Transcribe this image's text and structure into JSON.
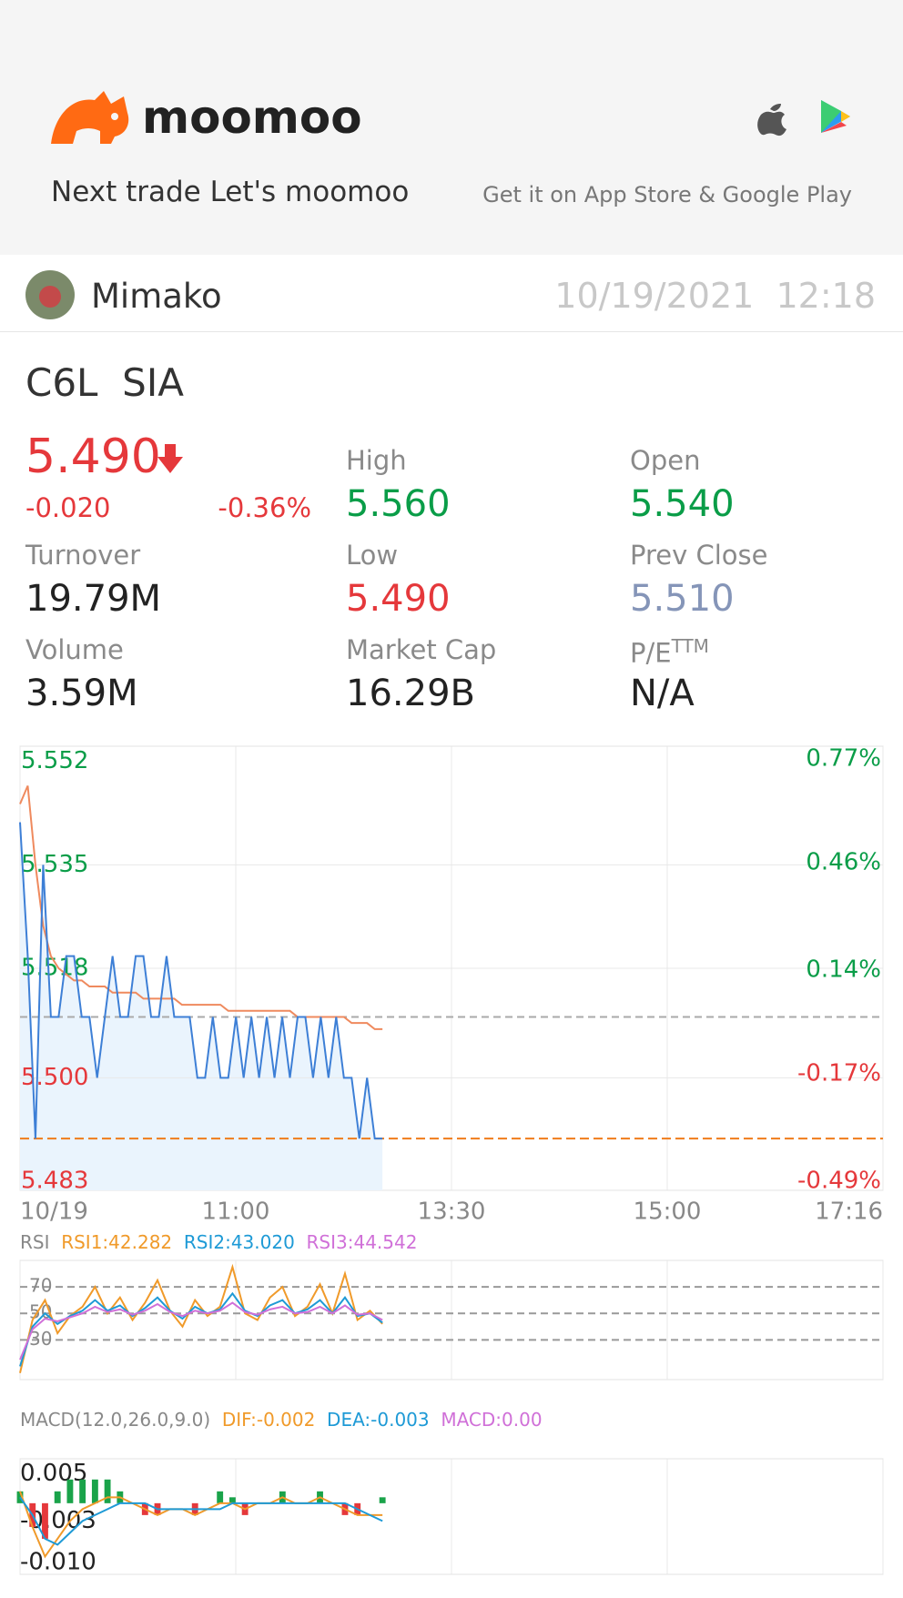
{
  "header": {
    "brand": "moomoo",
    "tagline": "Next trade Let's moomoo",
    "store_text": "Get it on App Store & Google Play"
  },
  "post": {
    "user": "Mimako",
    "date": "10/19/2021",
    "time": "12:18"
  },
  "stock": {
    "code": "C6L",
    "name": "SIA",
    "price": "5.490",
    "change": "-0.020",
    "change_pct": "-0.36%",
    "stats": [
      {
        "label": "High",
        "value": "5.560"
      },
      {
        "label": "Open",
        "value": "5.540"
      },
      {
        "label": "Turnover",
        "value": "19.79M"
      },
      {
        "label": "Low",
        "value": "5.490"
      },
      {
        "label": "Prev Close",
        "value": "5.510"
      },
      {
        "label": "Volume",
        "value": "3.59M"
      },
      {
        "label": "Market Cap",
        "value": "16.29B"
      },
      {
        "label": "P/E",
        "label_sup": "TTM",
        "value": "N/A"
      }
    ]
  },
  "chart_data": [
    {
      "type": "line",
      "x_labels": [
        "10/19",
        "11:00",
        "13:30",
        "15:00",
        "17:16"
      ],
      "series": [
        {
          "color": "#3d7fd6",
          "values": [
            5.542,
            5.52,
            5.49,
            5.535,
            5.51,
            5.51,
            5.52,
            5.52,
            5.51,
            5.51,
            5.5,
            5.51,
            5.52,
            5.51,
            5.51,
            5.52,
            5.52,
            5.51,
            5.51,
            5.52,
            5.51,
            5.51,
            5.51,
            5.5,
            5.5,
            5.51,
            5.5,
            5.5,
            5.51,
            5.5,
            5.51,
            5.5,
            5.51,
            5.5,
            5.51,
            5.5,
            5.51,
            5.51,
            5.5,
            5.51,
            5.5,
            5.51,
            5.5,
            5.5,
            5.49,
            5.5,
            5.49,
            5.49
          ]
        },
        {
          "color": "#ef8a5e",
          "values": [
            5.545,
            5.548,
            5.535,
            5.525,
            5.52,
            5.518,
            5.517,
            5.516,
            5.516,
            5.515,
            5.515,
            5.515,
            5.514,
            5.514,
            5.514,
            5.514,
            5.513,
            5.513,
            5.513,
            5.513,
            5.513,
            5.512,
            5.512,
            5.512,
            5.512,
            5.512,
            5.512,
            5.511,
            5.511,
            5.511,
            5.511,
            5.511,
            5.511,
            5.511,
            5.511,
            5.511,
            5.51,
            5.51,
            5.51,
            5.51,
            5.51,
            5.51,
            5.51,
            5.509,
            5.509,
            5.509,
            5.508,
            5.508
          ]
        }
      ],
      "ylim": [
        5.4815,
        5.5545
      ],
      "yticks": [
        5.552,
        5.535,
        5.518,
        {
          "value": 5.5,
          "label": "5.500"
        },
        5.483
      ],
      "y2lim": [
        -0.517,
        0.808
      ],
      "y2ticks": [
        {
          "value": 0.77,
          "label": "0.77%"
        },
        {
          "value": 0.46,
          "label": "0.46%"
        },
        {
          "value": 0.14,
          "label": "0.14%"
        },
        {
          "value": -0.17,
          "label": "-0.17%"
        },
        {
          "value": -0.49,
          "label": "-0.49%"
        }
      ]
    },
    {
      "type": "line",
      "title": "RSI",
      "series": [
        {
          "name": "RSI1:42.282",
          "color": "#f09a2a",
          "values": [
            5,
            45,
            60,
            35,
            48,
            55,
            70,
            50,
            62,
            45,
            58,
            75,
            52,
            40,
            60,
            48,
            55,
            85,
            50,
            45,
            62,
            70,
            48,
            55,
            72,
            50,
            80,
            45,
            52,
            42
          ]
        },
        {
          "name": "RSI2:43.020",
          "color": "#1e9ad6",
          "values": [
            10,
            40,
            50,
            42,
            48,
            52,
            60,
            52,
            56,
            48,
            54,
            62,
            52,
            46,
            55,
            50,
            53,
            65,
            52,
            48,
            56,
            60,
            50,
            53,
            60,
            50,
            62,
            48,
            50,
            43
          ]
        },
        {
          "name": "RSI3:44.542",
          "color": "#d070d8",
          "values": [
            15,
            38,
            46,
            44,
            47,
            50,
            55,
            51,
            53,
            49,
            52,
            57,
            51,
            48,
            52,
            50,
            52,
            58,
            51,
            49,
            53,
            55,
            50,
            51,
            55,
            50,
            56,
            49,
            50,
            45
          ]
        }
      ],
      "ylim": [
        0,
        90
      ],
      "yticks": [
        70,
        50,
        30
      ]
    },
    {
      "type": "macd",
      "title": "MACD(12.0,26.0,9.0)",
      "series": [
        {
          "name": "DIF:-0.002",
          "color": "#f09a2a",
          "values": [
            0.002,
            -0.004,
            -0.009,
            -0.006,
            -0.003,
            -0.001,
            0,
            0.001,
            0.001,
            0,
            -0.001,
            -0.002,
            -0.001,
            -0.001,
            -0.002,
            -0.001,
            0,
            0,
            -0.001,
            0,
            0,
            0.001,
            0,
            0,
            0.001,
            0,
            -0.001,
            -0.002,
            -0.002,
            -0.002
          ]
        },
        {
          "name": "DEA:-0.003",
          "color": "#1e9ad6",
          "values": [
            0.001,
            -0.002,
            -0.006,
            -0.007,
            -0.005,
            -0.003,
            -0.002,
            -0.001,
            0,
            0,
            0,
            -0.001,
            -0.001,
            -0.001,
            -0.001,
            -0.001,
            -0.001,
            0,
            0,
            0,
            0,
            0,
            0,
            0,
            0,
            0,
            0,
            -0.001,
            -0.002,
            -0.003
          ]
        },
        {
          "name": "MACD:0.00",
          "color": "#d070d8",
          "positive_color": "#1aa34a",
          "negative_color": "#e5383b",
          "values": [
            0.002,
            -0.004,
            -0.006,
            0.002,
            0.004,
            0.004,
            0.004,
            0.004,
            0.002,
            0,
            -0.002,
            -0.002,
            0,
            0,
            -0.002,
            0,
            0.002,
            0.001,
            -0.002,
            0,
            0,
            0.002,
            0,
            0,
            0.002,
            0,
            -0.002,
            -0.002,
            0,
            0.001
          ]
        }
      ],
      "ylim": [
        -0.012,
        0.0075
      ],
      "yticks": [
        0.005,
        -0.003,
        {
          "value": -0.01,
          "label": "-0.010"
        }
      ]
    }
  ]
}
